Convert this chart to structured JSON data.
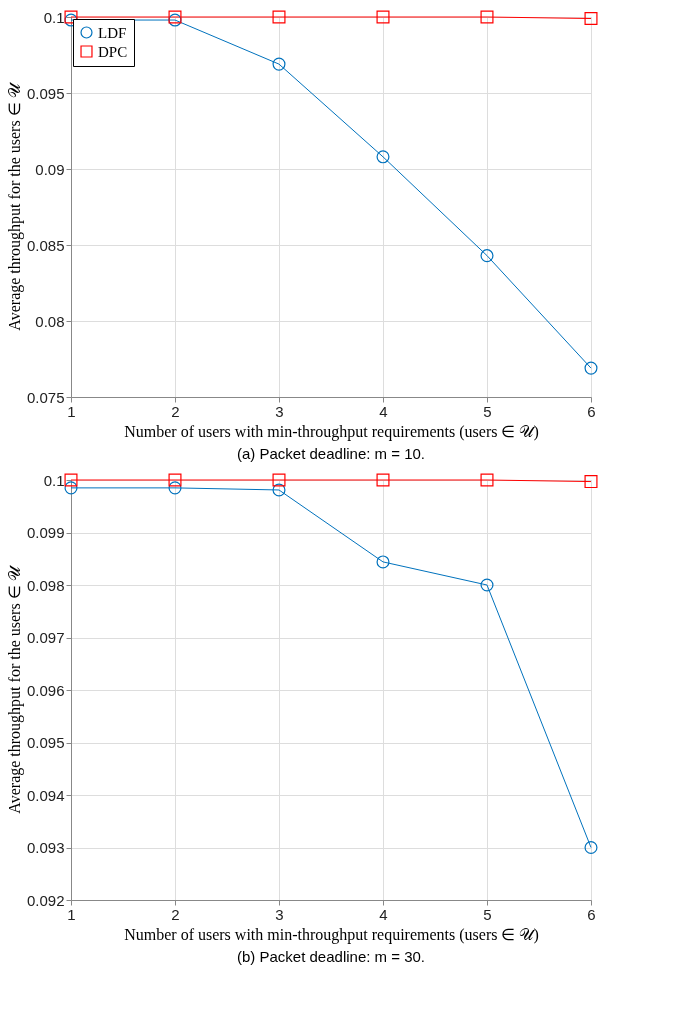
{
  "chart_data": [
    {
      "type": "line",
      "xlabel": "Number of users with min-throughput requirements (users ∈ 𝒰)",
      "ylabel": "Average throughput for the users ∈ 𝒰",
      "annotations": [
        "(a) Packet deadline: m = 10."
      ],
      "x": [
        1,
        2,
        3,
        4,
        5,
        6
      ],
      "xlim": [
        1,
        6
      ],
      "xticks": [
        1,
        2,
        3,
        4,
        5,
        6
      ],
      "ylim": [
        0.075,
        0.1
      ],
      "yticks": [
        0.075,
        0.08,
        0.085,
        0.09,
        0.095,
        0.1
      ],
      "grid": true,
      "legend": "top left",
      "series": [
        {
          "name": "LDF",
          "color": "#0072bd",
          "marker": "circle",
          "values": [
            0.0998,
            0.0998,
            0.0969,
            0.0908,
            0.0843,
            0.0769
          ]
        },
        {
          "name": "DPC",
          "color": "#ff0000",
          "marker": "square",
          "values": [
            0.1,
            0.1,
            0.1,
            0.1,
            0.1,
            0.0999
          ]
        }
      ]
    },
    {
      "type": "line",
      "xlabel": "Number of users with min-throughput requirements (users ∈ 𝒰)",
      "ylabel": "Average throughput for the users ∈ 𝒰",
      "annotations": [
        "(b) Packet deadline: m = 30."
      ],
      "x": [
        1,
        2,
        3,
        4,
        5,
        6
      ],
      "xlim": [
        1,
        6
      ],
      "xticks": [
        1,
        2,
        3,
        4,
        5,
        6
      ],
      "ylim": [
        0.092,
        0.1
      ],
      "yticks": [
        0.092,
        0.093,
        0.094,
        0.095,
        0.096,
        0.097,
        0.098,
        0.099,
        0.1
      ],
      "grid": true,
      "legend": "top left",
      "series": [
        {
          "name": "LDF",
          "color": "#0072bd",
          "marker": "circle",
          "values": [
            0.09985,
            0.09985,
            0.09981,
            0.09844,
            0.098,
            0.093
          ]
        },
        {
          "name": "DPC",
          "color": "#ff0000",
          "marker": "square",
          "values": [
            0.1,
            0.1,
            0.1,
            0.1,
            0.1,
            0.09997
          ]
        }
      ]
    }
  ]
}
